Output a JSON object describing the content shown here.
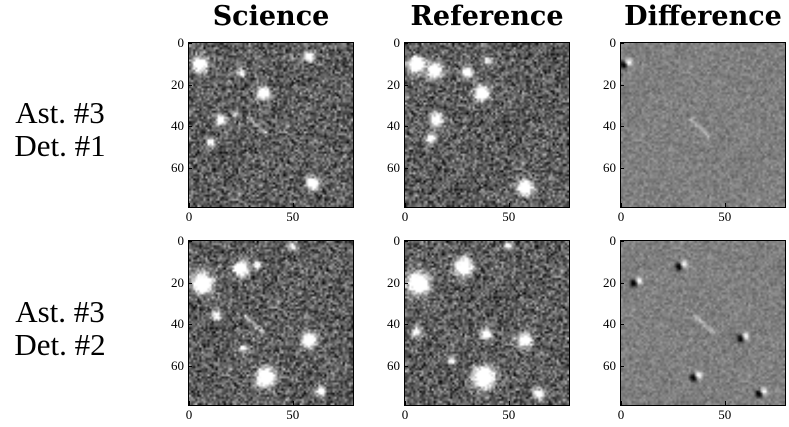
{
  "columns": [
    "Science",
    "Reference",
    "Difference"
  ],
  "rows": [
    {
      "line1": "Ast. #3",
      "line2": "Det. #1"
    },
    {
      "line1": "Ast. #3",
      "line2": "Det. #2"
    }
  ],
  "axes": {
    "y_ticks": [
      "0",
      "20",
      "40",
      "60"
    ],
    "x_ticks": [
      "0",
      "50"
    ]
  }
}
